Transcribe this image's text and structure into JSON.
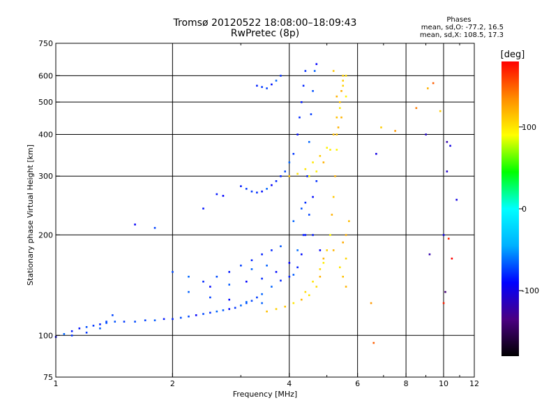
{
  "header": {
    "title": "Tromsø 20120522 18:08:00–18:09:43",
    "subtitle": "RwPretec (8p)"
  },
  "stats": {
    "heading": "Phases",
    "line1": "mean, sd,O: -77.2, 16.5",
    "line2": "mean, sd,X: 108.5, 17.3"
  },
  "chart_data": {
    "type": "scatter",
    "xlabel": "Frequency [MHz]",
    "ylabel": "Stationary phase Virtual Height [km]",
    "xscale": "log",
    "yscale": "log",
    "xlim": [
      1,
      12
    ],
    "ylim": [
      75,
      750
    ],
    "xticks": [
      1,
      2,
      4,
      6,
      8,
      10,
      12
    ],
    "xtick_labels": [
      "1",
      "2",
      "4",
      "6",
      "8",
      "10",
      "12"
    ],
    "x_gridlines": [
      2,
      4,
      6,
      8,
      10
    ],
    "yticks": [
      75,
      100,
      200,
      300,
      400,
      500,
      600,
      750
    ],
    "ytick_labels": [
      "75",
      "100",
      "200",
      "300",
      "400",
      "500",
      "600",
      "750"
    ],
    "y_gridlines": [
      100,
      200,
      300,
      400,
      500,
      600
    ],
    "grid": true,
    "colorbar": {
      "label": "[deg]",
      "range": [
        -180,
        180
      ],
      "ticks": [
        -100,
        0,
        100
      ],
      "tick_labels": [
        "-100",
        "0",
        "100"
      ],
      "colormap": "rainbow",
      "colors": [
        "#000000",
        "#4b0082",
        "#0000ff",
        "#00b0ff",
        "#00ffff",
        "#00ff00",
        "#ffff00",
        "#ff8c00",
        "#ff0000"
      ]
    },
    "series": [
      {
        "kind": "o-mode",
        "phase": -77,
        "points": [
          [
            1.0,
            99
          ],
          [
            1.05,
            101
          ],
          [
            1.1,
            103
          ],
          [
            1.15,
            105
          ],
          [
            1.2,
            106
          ],
          [
            1.25,
            107
          ],
          [
            1.3,
            108
          ],
          [
            1.35,
            109
          ],
          [
            1.42,
            110
          ],
          [
            1.5,
            110
          ],
          [
            1.6,
            110
          ],
          [
            1.7,
            111
          ],
          [
            1.8,
            111
          ],
          [
            1.9,
            112
          ],
          [
            2.0,
            112
          ],
          [
            2.1,
            113
          ],
          [
            2.2,
            114
          ],
          [
            2.3,
            115
          ],
          [
            2.4,
            116
          ],
          [
            2.5,
            117
          ],
          [
            2.6,
            118
          ],
          [
            2.7,
            119
          ],
          [
            2.8,
            120
          ],
          [
            2.9,
            121
          ],
          [
            3.0,
            123
          ],
          [
            3.1,
            125
          ],
          [
            3.2,
            127
          ],
          [
            3.3,
            130
          ],
          [
            3.4,
            133
          ],
          [
            3.6,
            140
          ],
          [
            3.8,
            146
          ],
          [
            4.0,
            150
          ],
          [
            4.1,
            152
          ],
          [
            4.2,
            160
          ],
          [
            4.3,
            175
          ],
          [
            4.35,
            200
          ],
          [
            4.4,
            250
          ],
          [
            4.45,
            300
          ],
          [
            4.5,
            380
          ],
          [
            4.55,
            460
          ],
          [
            4.6,
            540
          ],
          [
            4.65,
            620
          ],
          [
            4.7,
            650
          ],
          [
            3.0,
            280
          ],
          [
            3.1,
            275
          ],
          [
            3.2,
            270
          ],
          [
            3.3,
            268
          ],
          [
            3.4,
            270
          ],
          [
            3.5,
            275
          ],
          [
            3.6,
            282
          ],
          [
            3.7,
            290
          ],
          [
            3.8,
            300
          ],
          [
            3.9,
            310
          ],
          [
            4.0,
            330
          ],
          [
            4.1,
            350
          ],
          [
            4.2,
            400
          ],
          [
            4.25,
            450
          ],
          [
            4.3,
            500
          ],
          [
            4.35,
            560
          ],
          [
            4.4,
            620
          ],
          [
            3.3,
            560
          ],
          [
            3.4,
            555
          ],
          [
            3.5,
            550
          ],
          [
            3.6,
            565
          ],
          [
            3.7,
            580
          ],
          [
            3.8,
            600
          ],
          [
            1.3,
            105
          ],
          [
            1.35,
            110
          ],
          [
            1.4,
            115
          ],
          [
            1.2,
            102
          ],
          [
            1.1,
            100
          ],
          [
            2.0,
            155
          ],
          [
            2.2,
            150
          ],
          [
            2.4,
            145
          ],
          [
            2.6,
            150
          ],
          [
            2.8,
            155
          ],
          [
            3.0,
            162
          ],
          [
            3.2,
            168
          ],
          [
            3.4,
            175
          ],
          [
            3.6,
            180
          ],
          [
            3.8,
            185
          ],
          [
            2.2,
            135
          ],
          [
            2.5,
            140
          ],
          [
            2.8,
            142
          ],
          [
            3.1,
            145
          ],
          [
            3.4,
            148
          ],
          [
            3.7,
            155
          ],
          [
            4.0,
            165
          ],
          [
            4.2,
            180
          ],
          [
            4.4,
            200
          ],
          [
            4.5,
            230
          ],
          [
            4.6,
            260
          ],
          [
            4.7,
            290
          ],
          [
            2.5,
            130
          ],
          [
            2.8,
            128
          ],
          [
            3.1,
            126
          ],
          [
            3.4,
            125
          ],
          [
            3.2,
            158
          ],
          [
            3.5,
            162
          ],
          [
            4.1,
            220
          ],
          [
            4.3,
            240
          ],
          [
            4.6,
            200
          ],
          [
            4.8,
            180
          ],
          [
            2.6,
            265
          ],
          [
            2.7,
            262
          ],
          [
            1.6,
            215
          ],
          [
            1.8,
            210
          ],
          [
            2.4,
            240
          ]
        ]
      },
      {
        "kind": "x-mode",
        "phase": 108,
        "points": [
          [
            3.5,
            118
          ],
          [
            3.7,
            120
          ],
          [
            3.9,
            122
          ],
          [
            4.1,
            125
          ],
          [
            4.3,
            128
          ],
          [
            4.5,
            132
          ],
          [
            4.7,
            140
          ],
          [
            4.8,
            150
          ],
          [
            4.9,
            165
          ],
          [
            5.0,
            180
          ],
          [
            5.1,
            200
          ],
          [
            5.15,
            230
          ],
          [
            5.2,
            260
          ],
          [
            5.25,
            300
          ],
          [
            5.3,
            360
          ],
          [
            5.35,
            420
          ],
          [
            5.4,
            480
          ],
          [
            5.45,
            540
          ],
          [
            5.5,
            600
          ],
          [
            4.0,
            300
          ],
          [
            4.2,
            305
          ],
          [
            4.4,
            315
          ],
          [
            4.6,
            330
          ],
          [
            4.8,
            345
          ],
          [
            5.0,
            365
          ],
          [
            5.2,
            400
          ],
          [
            5.3,
            450
          ],
          [
            5.4,
            500
          ],
          [
            5.5,
            560
          ],
          [
            4.5,
            300
          ],
          [
            4.7,
            310
          ],
          [
            4.9,
            330
          ],
          [
            5.1,
            360
          ],
          [
            5.3,
            400
          ],
          [
            5.45,
            450
          ],
          [
            5.6,
            520
          ],
          [
            4.9,
            170
          ],
          [
            5.2,
            180
          ],
          [
            5.5,
            190
          ],
          [
            5.6,
            200
          ],
          [
            5.7,
            220
          ],
          [
            5.6,
            170
          ],
          [
            5.4,
            160
          ],
          [
            5.5,
            150
          ],
          [
            5.6,
            140
          ],
          [
            4.4,
            135
          ],
          [
            4.6,
            145
          ],
          [
            4.8,
            158
          ],
          [
            5.3,
            520
          ],
          [
            5.5,
            580
          ],
          [
            5.6,
            600
          ],
          [
            5.2,
            620
          ]
        ]
      }
    ],
    "outliers": [
      [
        6.6,
        95,
        150
      ],
      [
        6.5,
        125,
        130
      ],
      [
        6.7,
        350,
        -100
      ],
      [
        6.9,
        420,
        110
      ],
      [
        7.5,
        410,
        130
      ],
      [
        8.5,
        480,
        140
      ],
      [
        9.0,
        400,
        -110
      ],
      [
        9.4,
        570,
        150
      ],
      [
        9.8,
        470,
        110
      ],
      [
        10.2,
        380,
        -120
      ],
      [
        10.4,
        370,
        -100
      ],
      [
        10.8,
        255,
        -100
      ],
      [
        10.0,
        200,
        -100
      ],
      [
        10.3,
        195,
        170
      ],
      [
        10.1,
        135,
        -140
      ],
      [
        10.0,
        125,
        170
      ],
      [
        9.2,
        175,
        -120
      ],
      [
        10.5,
        170,
        180
      ],
      [
        10.2,
        310,
        -110
      ],
      [
        9.1,
        550,
        120
      ]
    ]
  }
}
